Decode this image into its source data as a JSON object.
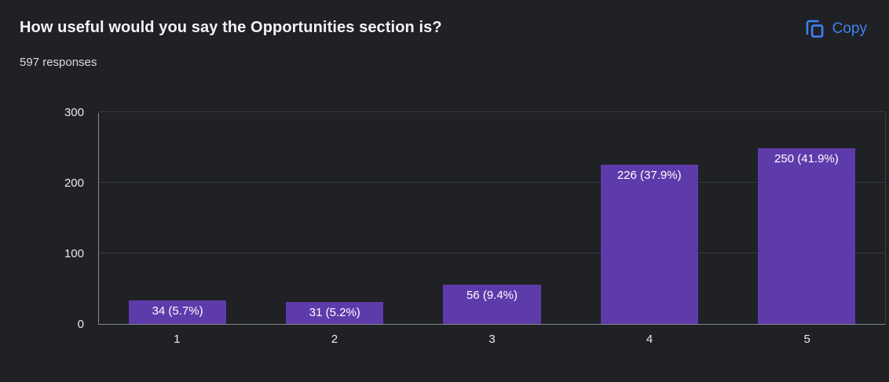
{
  "header": {
    "title": "How useful would you say the Opportunities section is?",
    "responses": "597 responses",
    "copy_label": "Copy"
  },
  "colors": {
    "background": "#202124",
    "bar": "#5e3bab",
    "blue": "#3f80f4",
    "grid": "#373a3e",
    "axis": "#85898d",
    "text": "#e8eaed"
  },
  "chart_data": {
    "type": "bar",
    "title": "How useful would you say the Opportunities section is?",
    "categories": [
      "1",
      "2",
      "3",
      "4",
      "5"
    ],
    "values": [
      34,
      31,
      56,
      226,
      250
    ],
    "bar_labels": [
      "34 (5.7%)",
      "31 (5.2%)",
      "56 (9.4%)",
      "226 (37.9%)",
      "250 (41.9%)"
    ],
    "yticks": [
      0,
      100,
      200,
      300
    ],
    "ylim": [
      0,
      300
    ],
    "xlabel": "",
    "ylabel": "",
    "grid": true,
    "legend": false
  }
}
